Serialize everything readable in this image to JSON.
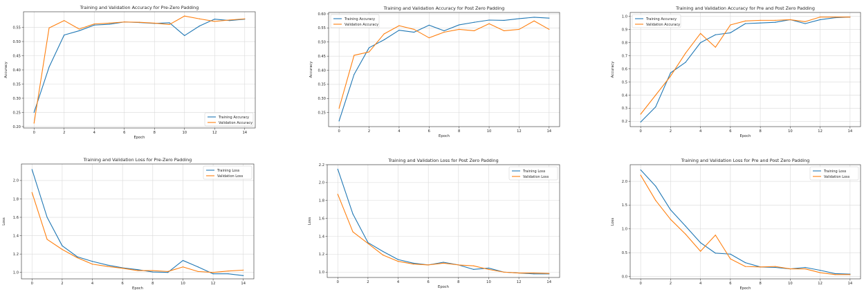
{
  "colors": {
    "training": "#1f77b4",
    "validation": "#ff7f0e",
    "grid": "#d9d9d9",
    "axis": "#262626"
  },
  "chart_data": [
    {
      "type": "line",
      "title": "Training and Validation Accuracy for Pre-Zero Padding",
      "xlabel": "Epoch",
      "ylabel": "Accuracy",
      "x": [
        0,
        1,
        2,
        3,
        4,
        5,
        6,
        7,
        8,
        9,
        10,
        11,
        12,
        13,
        14
      ],
      "xticks": [
        0,
        2,
        4,
        6,
        8,
        10,
        12,
        14
      ],
      "yticks": [
        0.2,
        0.25,
        0.3,
        0.35,
        0.4,
        0.45,
        0.5,
        0.55
      ],
      "ytick_labels": [
        "0.20",
        "0.25",
        "0.30",
        "0.35",
        "0.40",
        "0.45",
        "0.50",
        "0.55"
      ],
      "xlim": [
        -0.7,
        14.7
      ],
      "ylim": [
        0.195,
        0.605
      ],
      "grid": true,
      "legend": "lower-right",
      "series": [
        {
          "name": "Training Accuracy",
          "values": [
            0.25,
            0.41,
            0.523,
            0.538,
            0.558,
            0.561,
            0.569,
            0.567,
            0.564,
            0.566,
            0.521,
            0.555,
            0.579,
            0.574,
            0.579
          ]
        },
        {
          "name": "Validation Accuracy",
          "values": [
            0.212,
            0.548,
            0.574,
            0.544,
            0.562,
            0.565,
            0.569,
            0.568,
            0.565,
            0.56,
            0.59,
            0.58,
            0.571,
            0.576,
            0.58
          ]
        }
      ]
    },
    {
      "type": "line",
      "title": "Training and Validation Accuracy for Post Zero Padding",
      "xlabel": "Epoch",
      "ylabel": "Accuracy",
      "x": [
        0,
        1,
        2,
        3,
        4,
        5,
        6,
        7,
        8,
        9,
        10,
        11,
        12,
        13,
        14
      ],
      "xticks": [
        0,
        2,
        4,
        6,
        8,
        10,
        12,
        14
      ],
      "yticks": [
        0.25,
        0.3,
        0.35,
        0.4,
        0.45,
        0.5,
        0.55,
        0.6
      ],
      "ytick_labels": [
        "0.25",
        "0.30",
        "0.35",
        "0.40",
        "0.45",
        "0.50",
        "0.55",
        "0.60"
      ],
      "xlim": [
        -0.7,
        14.7
      ],
      "ylim": [
        0.2,
        0.605
      ],
      "grid": true,
      "legend": "upper-left",
      "series": [
        {
          "name": "Training Accuracy",
          "values": [
            0.22,
            0.385,
            0.48,
            0.508,
            0.542,
            0.535,
            0.56,
            0.54,
            0.561,
            0.57,
            0.578,
            0.577,
            0.583,
            0.588,
            0.585
          ]
        },
        {
          "name": "Validation Accuracy",
          "values": [
            0.265,
            0.453,
            0.465,
            0.529,
            0.558,
            0.545,
            0.515,
            0.535,
            0.545,
            0.54,
            0.565,
            0.54,
            0.545,
            0.575,
            0.545
          ]
        }
      ]
    },
    {
      "type": "line",
      "title": "Training and Validation Accuracy for Pre and Post Zero Padding",
      "xlabel": "Epoch",
      "ylabel": "Accuracy",
      "x": [
        0,
        1,
        2,
        3,
        4,
        5,
        6,
        7,
        8,
        9,
        10,
        11,
        12,
        13,
        14
      ],
      "xticks": [
        0,
        2,
        4,
        6,
        8,
        10,
        12,
        14
      ],
      "yticks": [
        0.2,
        0.3,
        0.4,
        0.5,
        0.6,
        0.7,
        0.8,
        0.9,
        1.0
      ],
      "ytick_labels": [
        "0.2",
        "0.3",
        "0.4",
        "0.5",
        "0.6",
        "0.7",
        "0.8",
        "0.9",
        "1.0"
      ],
      "xlim": [
        -0.7,
        14.7
      ],
      "ylim": [
        0.16,
        1.03
      ],
      "grid": true,
      "legend": "upper-left",
      "series": [
        {
          "name": "Training Accuracy",
          "values": [
            0.195,
            0.31,
            0.57,
            0.65,
            0.8,
            0.86,
            0.875,
            0.945,
            0.95,
            0.955,
            0.975,
            0.945,
            0.975,
            0.99,
            0.995
          ]
        },
        {
          "name": "Validation Accuracy",
          "values": [
            0.255,
            0.4,
            0.545,
            0.72,
            0.87,
            0.765,
            0.935,
            0.965,
            0.97,
            0.97,
            0.975,
            0.96,
            0.995,
            0.995,
            0.995
          ]
        }
      ]
    },
    {
      "type": "line",
      "title": "Training and Validation Loss for Pre-Zero Padding",
      "xlabel": "Epoch",
      "ylabel": "Loss",
      "x": [
        0,
        1,
        2,
        3,
        4,
        5,
        6,
        7,
        8,
        9,
        10,
        11,
        12,
        13,
        14
      ],
      "xticks": [
        0,
        2,
        4,
        6,
        8,
        10,
        12,
        14
      ],
      "yticks": [
        1.0,
        1.2,
        1.4,
        1.6,
        1.8,
        2.0
      ],
      "ytick_labels": [
        "1.0",
        "1.2",
        "1.4",
        "1.6",
        "1.8",
        "2.0"
      ],
      "xlim": [
        -0.7,
        14.7
      ],
      "ylim": [
        0.93,
        2.18
      ],
      "grid": true,
      "legend": "upper-right",
      "series": [
        {
          "name": "Training Loss",
          "values": [
            2.12,
            1.6,
            1.29,
            1.17,
            1.12,
            1.08,
            1.05,
            1.03,
            1.005,
            1.0,
            1.13,
            1.06,
            0.985,
            0.985,
            0.965
          ]
        },
        {
          "name": "Validation Loss",
          "values": [
            1.87,
            1.36,
            1.25,
            1.16,
            1.09,
            1.065,
            1.045,
            1.02,
            1.02,
            1.01,
            1.06,
            1.01,
            1.0,
            1.015,
            1.025
          ]
        }
      ]
    },
    {
      "type": "line",
      "title": "Training and Validation Loss for Post Zero Padding",
      "xlabel": "Epoch",
      "ylabel": "Loss",
      "x": [
        0,
        1,
        2,
        3,
        4,
        5,
        6,
        7,
        8,
        9,
        10,
        11,
        12,
        13,
        14
      ],
      "xticks": [
        0,
        2,
        4,
        6,
        8,
        10,
        12,
        14
      ],
      "yticks": [
        1.0,
        1.2,
        1.4,
        1.6,
        1.8,
        2.0,
        2.2
      ],
      "ytick_labels": [
        "1.0",
        "1.2",
        "1.4",
        "1.6",
        "1.8",
        "2.0",
        "2.2"
      ],
      "xlim": [
        -0.7,
        14.7
      ],
      "ylim": [
        0.94,
        2.2
      ],
      "grid": true,
      "legend": "upper-right",
      "series": [
        {
          "name": "Training Loss",
          "values": [
            2.15,
            1.65,
            1.33,
            1.23,
            1.14,
            1.1,
            1.08,
            1.11,
            1.08,
            1.03,
            1.045,
            1.0,
            0.99,
            0.98,
            0.98
          ]
        },
        {
          "name": "Validation Loss",
          "values": [
            1.87,
            1.45,
            1.32,
            1.19,
            1.12,
            1.09,
            1.08,
            1.1,
            1.08,
            1.07,
            1.03,
            1.0,
            0.99,
            0.99,
            0.985
          ]
        }
      ]
    },
    {
      "type": "line",
      "title": "Training and Validation Loss for Pre and Post Zero Padding",
      "xlabel": "Epoch",
      "ylabel": "Loss",
      "x": [
        0,
        1,
        2,
        3,
        4,
        5,
        6,
        7,
        8,
        9,
        10,
        11,
        12,
        13,
        14
      ],
      "xticks": [
        0,
        2,
        4,
        6,
        8,
        10,
        12,
        14
      ],
      "yticks": [
        0.0,
        0.5,
        1.0,
        1.5,
        2.0
      ],
      "ytick_labels": [
        "0.0",
        "0.5",
        "1.0",
        "1.5",
        "2.0"
      ],
      "xlim": [
        -0.7,
        14.7
      ],
      "ylim": [
        -0.05,
        2.35
      ],
      "grid": true,
      "legend": "upper-right",
      "series": [
        {
          "name": "Training Loss",
          "values": [
            2.24,
            1.9,
            1.4,
            1.06,
            0.71,
            0.49,
            0.47,
            0.29,
            0.2,
            0.19,
            0.16,
            0.19,
            0.13,
            0.06,
            0.05
          ]
        },
        {
          "name": "Validation Loss",
          "values": [
            2.13,
            1.6,
            1.2,
            0.89,
            0.53,
            0.87,
            0.37,
            0.21,
            0.2,
            0.21,
            0.16,
            0.16,
            0.08,
            0.04,
            0.04
          ]
        }
      ]
    }
  ]
}
